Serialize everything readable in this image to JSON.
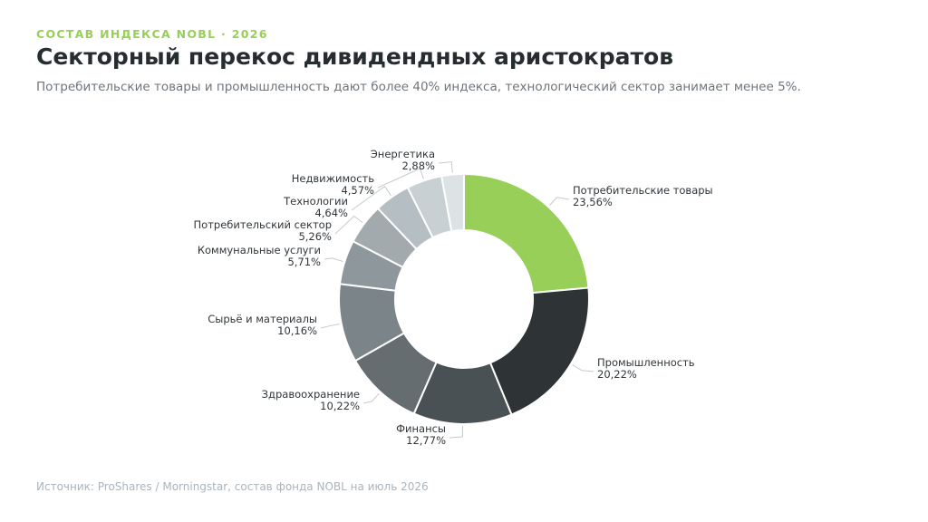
{
  "header": {
    "eyebrow": "СОСТАВ ИНДЕКСА NOBL · 2026",
    "title": "Секторный перекос дивидендных аристократов",
    "subtitle": "Потребительские товары и промышленность дают более 40% индекса, технологический сектор занимает менее 5%."
  },
  "footer": {
    "source": "Источник: ProShares / Morningstar, состав фонда NOBL на июль 2026"
  },
  "colors": {
    "accent": "#97cf59",
    "title": "#262d30"
  },
  "chart_data": {
    "type": "pie",
    "style": "donut",
    "title": "",
    "slices": [
      {
        "label": "Потребительские товары",
        "value": 23.56,
        "display": "23,56%",
        "color": "#97cf59"
      },
      {
        "label": "Промышленность",
        "value": 20.22,
        "display": "20,22%",
        "color": "#2e3436"
      },
      {
        "label": "Финансы",
        "value": 12.77,
        "display": "12,77%",
        "color": "#4a5155"
      },
      {
        "label": "Здравоохранение",
        "value": 10.22,
        "display": "10,22%",
        "color": "#656d71"
      },
      {
        "label": "Сырьё и материалы",
        "value": 10.16,
        "display": "10,16%",
        "color": "#7b8489"
      },
      {
        "label": "Коммунальные услуги",
        "value": 5.71,
        "display": "5,71%",
        "color": "#8e979c"
      },
      {
        "label": "Потребительский сектор",
        "value": 5.26,
        "display": "5,26%",
        "color": "#a2aaae"
      },
      {
        "label": "Технологии",
        "value": 4.64,
        "display": "4,64%",
        "color": "#b5bec3"
      },
      {
        "label": "Недвижимость",
        "value": 4.57,
        "display": "4,57%",
        "color": "#c9d0d4"
      },
      {
        "label": "Энергетика",
        "value": 2.88,
        "display": "2,88%",
        "color": "#dde2e5"
      }
    ]
  }
}
